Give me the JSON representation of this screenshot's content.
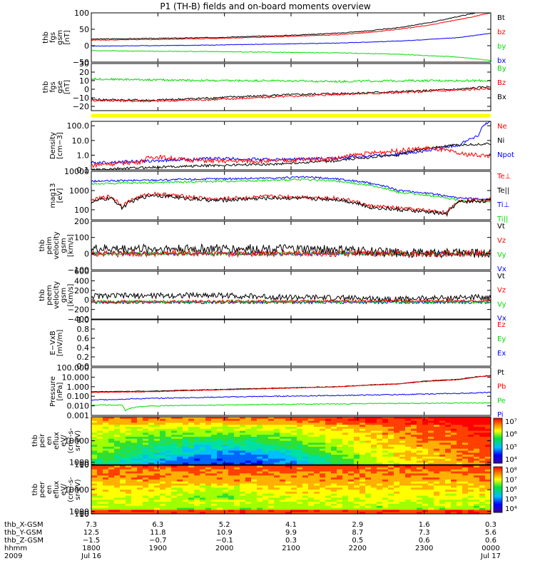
{
  "title": "P1 (TH-B) fields and on-board moments overview",
  "colors": {
    "black": "#000000",
    "red": "#ff0000",
    "green": "#00dd00",
    "blue": "#0000ff",
    "yellow": "#ffff00"
  },
  "chart_data": [
    {
      "type": "line",
      "id": "fgs_mag",
      "ylabel": [
        "thb",
        "fgs",
        "gsm",
        "[nT]"
      ],
      "ylim": [
        -50,
        100
      ],
      "ticks": [
        {
          "v": 100,
          "t": "100"
        },
        {
          "v": 50,
          "t": "50"
        },
        {
          "v": 0,
          "t": "0"
        },
        {
          "v": -50,
          "t": "−50"
        }
      ],
      "legend": [
        {
          "t": "Bt",
          "c": "black"
        },
        {
          "t": "bz",
          "c": "red"
        },
        {
          "t": "by",
          "c": "green"
        },
        {
          "t": "bx",
          "c": "blue"
        }
      ],
      "series": [
        {
          "color": "black",
          "x": [
            0,
            1,
            2,
            3,
            4,
            4.5,
            5,
            5.5,
            6,
            6.5
          ],
          "y": [
            20,
            22,
            25,
            30,
            38,
            45,
            55,
            70,
            90,
            110
          ],
          "noise": 1.2
        },
        {
          "color": "red",
          "x": [
            0,
            1,
            2,
            3,
            4,
            4.5,
            5,
            5.5,
            6,
            6.5
          ],
          "y": [
            17,
            19,
            22,
            27,
            33,
            40,
            50,
            63,
            80,
            100
          ],
          "noise": 1.2
        },
        {
          "color": "blue",
          "x": [
            0,
            1,
            2,
            3,
            4,
            5,
            6,
            6.5
          ],
          "y": [
            -1,
            0,
            2,
            5,
            8,
            14,
            25,
            38
          ],
          "noise": 0.8
        },
        {
          "color": "green",
          "x": [
            0,
            1,
            2,
            3,
            4,
            5,
            6,
            6.5
          ],
          "y": [
            -15,
            -17,
            -18,
            -20,
            -22,
            -26,
            -35,
            -45
          ],
          "noise": 1
        }
      ]
    },
    {
      "type": "line",
      "id": "fgs_dsl",
      "ylabel": [
        "thb",
        "fgs",
        "gse",
        "[nT]"
      ],
      "ylim": [
        -25,
        30
      ],
      "ticks": [
        {
          "v": 30,
          "t": "30"
        },
        {
          "v": 20,
          "t": "20"
        },
        {
          "v": 10,
          "t": "10"
        },
        {
          "v": 0,
          "t": "0"
        },
        {
          "v": -10,
          "t": "−10"
        },
        {
          "v": -20,
          "t": "−20"
        }
      ],
      "legend": [
        {
          "t": "By",
          "c": "green"
        },
        {
          "t": "Bz",
          "c": "red"
        },
        {
          "t": "Bx",
          "c": "black"
        }
      ],
      "series": [
        {
          "color": "green",
          "x": [
            0,
            1,
            2,
            3,
            4,
            5,
            6,
            6.5
          ],
          "y": [
            12,
            11,
            10,
            10,
            9,
            10,
            10,
            10
          ],
          "noise": 1.2
        },
        {
          "color": "black",
          "x": [
            0,
            1,
            2,
            3,
            4,
            5,
            6,
            6.5
          ],
          "y": [
            -12,
            -13,
            -10,
            -7,
            -5,
            -3,
            0,
            3
          ],
          "noise": 1.2
        },
        {
          "color": "red",
          "x": [
            0,
            1,
            2,
            3,
            4,
            5,
            6,
            6.5
          ],
          "y": [
            -13,
            -14,
            -12,
            -9,
            -6,
            -4,
            -1,
            1
          ],
          "noise": 1.2
        }
      ]
    },
    {
      "type": "bar_strip",
      "id": "mode_bar",
      "color": "yellow"
    },
    {
      "type": "line",
      "id": "density",
      "log": true,
      "ylabel": [
        "Density",
        "[cm−3]"
      ],
      "ylim": [
        0.1,
        200
      ],
      "ticks": [
        {
          "v": 100,
          "t": "100.0"
        },
        {
          "v": 10,
          "t": "10.0"
        },
        {
          "v": 1,
          "t": "1.0"
        },
        {
          "v": 0.1,
          "t": "0.1"
        }
      ],
      "legend": [
        {
          "t": "Ne",
          "c": "red"
        },
        {
          "t": "Ni",
          "c": "black"
        },
        {
          "t": "Npot",
          "c": "blue"
        }
      ],
      "series": [
        {
          "color": "blue",
          "x": [
            0,
            1,
            2,
            3,
            4,
            5,
            5.5,
            6,
            6.3,
            6.5
          ],
          "y": [
            0.3,
            0.4,
            0.6,
            0.5,
            0.6,
            1.2,
            2,
            5,
            20,
            200
          ],
          "noise": 0.1
        },
        {
          "color": "black",
          "x": [
            0,
            1,
            2,
            3,
            4,
            5,
            6,
            6.5
          ],
          "y": [
            0.1,
            0.15,
            0.2,
            0.25,
            0.4,
            1.0,
            5,
            6
          ],
          "noise": 0.08
        },
        {
          "color": "red",
          "x": [
            0,
            0.8,
            1,
            1.5,
            2,
            3,
            4,
            5,
            5.5,
            6,
            6.5
          ],
          "y": [
            0.2,
            0.35,
            0.8,
            0.5,
            0.4,
            0.4,
            0.6,
            2,
            3,
            1.2,
            0.9
          ],
          "noise": 0.15
        }
      ]
    },
    {
      "type": "line",
      "id": "temp",
      "log": true,
      "ylabel": [
        "mag13",
        "[eV]"
      ],
      "ylim": [
        30,
        10000
      ],
      "ticks": [
        {
          "v": 10000,
          "t": "10000"
        },
        {
          "v": 1000,
          "t": "1000"
        },
        {
          "v": 100,
          "t": "100"
        }
      ],
      "legend": [
        {
          "t": "Te⊥",
          "c": "red"
        },
        {
          "t": "Te||",
          "c": "black"
        },
        {
          "t": "Ti⊥",
          "c": "blue"
        },
        {
          "t": "Ti||",
          "c": "green"
        }
      ],
      "series": [
        {
          "color": "blue",
          "x": [
            0,
            1,
            2,
            3,
            3.5,
            4,
            5,
            6,
            6.5
          ],
          "y": [
            3000,
            3500,
            4000,
            4500,
            5000,
            4000,
            1000,
            400,
            350
          ],
          "noise": 0.05
        },
        {
          "color": "green",
          "x": [
            0,
            1,
            2,
            3,
            3.5,
            4,
            5,
            6,
            6.5
          ],
          "y": [
            2200,
            2600,
            3000,
            3400,
            3800,
            3000,
            800,
            300,
            270
          ],
          "noise": 0.05
        },
        {
          "color": "red",
          "x": [
            0,
            0.3,
            0.5,
            1,
            1.5,
            2,
            3,
            4,
            4.5,
            5,
            5.8,
            6,
            6.5
          ],
          "y": [
            300,
            500,
            150,
            700,
            500,
            350,
            500,
            400,
            160,
            120,
            70,
            300,
            350
          ],
          "noise": 0.1
        },
        {
          "color": "black",
          "x": [
            0,
            0.3,
            0.5,
            1,
            1.5,
            2,
            3,
            4,
            4.5,
            5,
            5.8,
            6,
            6.5
          ],
          "y": [
            250,
            400,
            120,
            600,
            400,
            300,
            420,
            350,
            140,
            100,
            60,
            260,
            300
          ],
          "noise": 0.1
        }
      ]
    },
    {
      "type": "line",
      "id": "peim_vel",
      "ylabel": [
        "thb",
        "peim",
        "velocity",
        "gsm",
        "[km/s]"
      ],
      "ylim": [
        -100,
        200
      ],
      "ticks": [
        {
          "v": 200,
          "t": "200"
        },
        {
          "v": 100,
          "t": "100"
        },
        {
          "v": 0,
          "t": "0"
        },
        {
          "v": -100,
          "t": "−100"
        }
      ],
      "legend": [
        {
          "t": "Vt",
          "c": "black"
        },
        {
          "t": "Vz",
          "c": "red"
        },
        {
          "t": "Vy",
          "c": "green"
        },
        {
          "t": "Vx",
          "c": "blue"
        }
      ],
      "series": [
        {
          "color": "blue",
          "x": [
            0,
            6.5
          ],
          "y": [
            0,
            0
          ],
          "noise": 10
        },
        {
          "color": "green",
          "x": [
            0,
            6.5
          ],
          "y": [
            0,
            0
          ],
          "noise": 12
        },
        {
          "color": "black",
          "x": [
            0,
            3,
            4,
            5,
            6.5
          ],
          "y": [
            30,
            30,
            25,
            5,
            2
          ],
          "noise": 28
        },
        {
          "color": "red",
          "x": [
            0,
            3,
            4,
            5,
            6.5
          ],
          "y": [
            0,
            0,
            0,
            0,
            0
          ],
          "noise": 20
        }
      ]
    },
    {
      "type": "line",
      "id": "peem_vel",
      "ylabel": [
        "thb",
        "peem",
        "velocity",
        "gsm",
        "[km/s]"
      ],
      "ylim": [
        -400,
        600
      ],
      "ticks": [
        {
          "v": 600,
          "t": "600"
        },
        {
          "v": 400,
          "t": "400"
        },
        {
          "v": 200,
          "t": "200"
        },
        {
          "v": 0,
          "t": "0"
        },
        {
          "v": -200,
          "t": "−200"
        },
        {
          "v": -400,
          "t": "−400"
        }
      ],
      "legend": [
        {
          "t": "Vt",
          "c": "black"
        },
        {
          "t": "Vz",
          "c": "red"
        },
        {
          "t": "Vy",
          "c": "green"
        },
        {
          "t": "Vx",
          "c": "blue"
        }
      ],
      "series": [
        {
          "color": "blue",
          "x": [
            0,
            6.5
          ],
          "y": [
            -50,
            -50
          ],
          "noise": 30
        },
        {
          "color": "green",
          "x": [
            0,
            6.5
          ],
          "y": [
            -40,
            -40
          ],
          "noise": 35
        },
        {
          "color": "black",
          "x": [
            0,
            2,
            3,
            5,
            6.5
          ],
          "y": [
            80,
            100,
            60,
            20,
            60
          ],
          "noise": 60
        },
        {
          "color": "red",
          "x": [
            0,
            2,
            3,
            5,
            6.5
          ],
          "y": [
            -40,
            -30,
            -30,
            -20,
            -20
          ],
          "noise": 30
        }
      ]
    },
    {
      "type": "line",
      "id": "efield",
      "ylabel": [
        "E−VxB",
        "[mV/m]"
      ],
      "ylim": [
        0,
        1
      ],
      "ticks": [
        {
          "v": 1,
          "t": "1.0"
        },
        {
          "v": 0.8,
          "t": "0.8"
        },
        {
          "v": 0.6,
          "t": "0.6"
        },
        {
          "v": 0.4,
          "t": "0.4"
        },
        {
          "v": 0.2,
          "t": "0.2"
        },
        {
          "v": 0,
          "t": "0.0"
        }
      ],
      "legend": [
        {
          "t": "Ez",
          "c": "red"
        },
        {
          "t": "Ey",
          "c": "green"
        },
        {
          "t": "Ex",
          "c": "blue"
        }
      ],
      "series": []
    },
    {
      "type": "line",
      "id": "pressure",
      "log": true,
      "ylabel": [
        "Pressure",
        "[nPa]"
      ],
      "ylim": [
        0.001,
        100
      ],
      "ticks": [
        {
          "v": 100,
          "t": "100.000"
        },
        {
          "v": 10,
          "t": "10.000"
        },
        {
          "v": 1,
          "t": "1.000"
        },
        {
          "v": 0.1,
          "t": "0.100"
        },
        {
          "v": 0.01,
          "t": "0.010"
        },
        {
          "v": 0.001,
          "t": "0.001"
        }
      ],
      "legend": [
        {
          "t": "Pt",
          "c": "black"
        },
        {
          "t": "Pb",
          "c": "red"
        },
        {
          "t": "Pe",
          "c": "green"
        },
        {
          "t": "Pi",
          "c": "blue"
        }
      ],
      "series": [
        {
          "color": "black",
          "x": [
            0,
            1,
            2,
            3,
            4,
            5,
            6,
            6.5
          ],
          "y": [
            0.3,
            0.35,
            0.5,
            0.7,
            1.0,
            2,
            6,
            15
          ],
          "noise": 0.03
        },
        {
          "color": "red",
          "x": [
            0,
            1,
            2,
            3,
            4,
            5,
            6,
            6.5
          ],
          "y": [
            0.25,
            0.3,
            0.45,
            0.65,
            0.95,
            1.9,
            5.5,
            14
          ],
          "noise": 0.03
        },
        {
          "color": "blue",
          "x": [
            0,
            1,
            2,
            3,
            4,
            5,
            6,
            6.5
          ],
          "y": [
            0.04,
            0.06,
            0.08,
            0.1,
            0.12,
            0.15,
            0.2,
            0.25
          ],
          "noise": 0.05
        },
        {
          "color": "green",
          "x": [
            0,
            0.5,
            0.55,
            0.7,
            1,
            2,
            3,
            4,
            5,
            6,
            6.5
          ],
          "y": [
            0.012,
            0.012,
            0.003,
            0.007,
            0.01,
            0.012,
            0.014,
            0.016,
            0.018,
            0.02,
            0.02
          ],
          "noise": 0.05
        }
      ]
    },
    {
      "type": "heatmap",
      "id": "peir_spec",
      "ylabel": [
        "thb",
        "peir",
        "en",
        "eflux",
        "eV/",
        "(cm²-s-",
        "sr-eV)"
      ],
      "ylim": [
        10,
        20000
      ],
      "ticks": [
        {
          "v": 10000,
          "t": "10000"
        },
        {
          "v": 1000,
          "t": "1000"
        },
        {
          "v": 100,
          "t": "100"
        },
        {
          "v": 10,
          "t": "10"
        }
      ],
      "colorbar": [
        {
          "t": "10⁷"
        },
        {
          "t": "10⁶"
        },
        {
          "t": "10⁵"
        },
        {
          "t": "10⁴"
        }
      ]
    },
    {
      "type": "heatmap",
      "id": "peer_spec",
      "ylabel": [
        "thb",
        "peer",
        "en",
        "eflux",
        "eV/",
        "(cm²-s-",
        "sr-eV)"
      ],
      "ylim": [
        10,
        20000
      ],
      "ticks": [
        {
          "v": 10000,
          "t": "10000"
        },
        {
          "v": 1000,
          "t": "1000"
        },
        {
          "v": 100,
          "t": "100"
        },
        {
          "v": 10,
          "t": "10"
        }
      ],
      "colorbar": [
        {
          "t": "10⁸"
        },
        {
          "t": "10⁷"
        },
        {
          "t": "10⁶"
        },
        {
          "t": "10⁵"
        },
        {
          "t": "10⁴"
        }
      ]
    }
  ],
  "x_axis": {
    "labels": [
      "thb_X-GSM",
      "thb_Y-GSM",
      "thb_Z-GSM",
      "hhmm",
      "2009"
    ],
    "columns": [
      {
        "rows": [
          "7.3",
          "12.5",
          "−1.5",
          "1800",
          "Jul 16"
        ]
      },
      {
        "rows": [
          "6.3",
          "11.8",
          "−0.7",
          "1900",
          ""
        ]
      },
      {
        "rows": [
          "5.2",
          "10.9",
          "−0.1",
          "2000",
          ""
        ]
      },
      {
        "rows": [
          "4.1",
          "9.9",
          "0.3",
          "2100",
          ""
        ]
      },
      {
        "rows": [
          "2.9",
          "8.7",
          "0.5",
          "2200",
          ""
        ]
      },
      {
        "rows": [
          "1.6",
          "7.3",
          "0.6",
          "2300",
          ""
        ]
      },
      {
        "rows": [
          "0.3",
          "5.6",
          "0.6",
          "0000",
          "Jul 17"
        ]
      }
    ]
  }
}
